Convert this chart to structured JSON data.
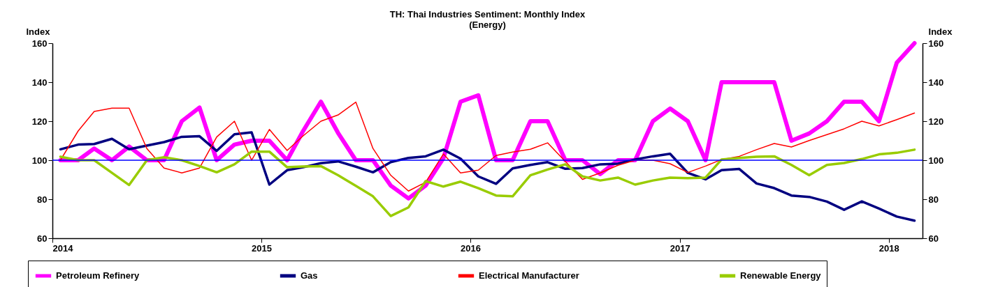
{
  "chart_data": {
    "type": "line",
    "title": "TH: Thai Industries Sentiment: Monthly Index",
    "subtitle": "(Energy)",
    "ylabel": "Index",
    "y2label": "Index",
    "x": [
      "2014-01-15",
      "2014-02-15",
      "2014-03-15",
      "2014-04-15",
      "2014-05-15",
      "2014-06-15",
      "2014-07-15",
      "2014-08-15",
      "2014-09-15",
      "2014-10-15",
      "2014-11-15",
      "2014-12-15",
      "2015-01-15",
      "2015-02-15",
      "2015-03-15",
      "2015-04-15",
      "2015-05-15",
      "2015-06-15",
      "2015-07-15",
      "2015-08-15",
      "2015-09-15",
      "2015-10-15",
      "2015-11-15",
      "2015-12-15",
      "2016-01-15",
      "2016-02-15",
      "2016-03-15",
      "2016-04-15",
      "2016-05-15",
      "2016-06-15",
      "2016-07-15",
      "2016-08-15",
      "2016-09-15",
      "2016-10-15",
      "2016-11-15",
      "2016-12-15",
      "2017-01-15",
      "2017-02-15",
      "2017-03-15",
      "2017-04-15",
      "2017-05-15",
      "2017-06-15",
      "2017-07-15",
      "2017-08-15",
      "2017-09-15",
      "2017-10-15",
      "2017-11-15",
      "2017-12-15",
      "2018-01-15",
      "2018-02-15"
    ],
    "series": [
      {
        "name": "Petroleum Refinery",
        "color": "#ff00ff",
        "values": [
          100,
          100,
          106,
          100,
          107,
          100,
          100,
          120,
          127,
          100,
          108,
          110,
          110,
          100,
          115,
          130,
          114,
          100,
          100,
          87,
          80.4,
          87,
          101,
          130,
          133.3,
          100,
          100,
          120,
          120,
          100,
          100,
          92.9,
          100,
          100,
          120,
          126.5,
          120,
          100,
          140,
          140,
          140,
          140,
          110,
          113.7,
          120,
          130,
          130,
          120,
          150,
          160
        ]
      },
      {
        "name": "Gas",
        "color": "#000080",
        "values": [
          105.6,
          108,
          108.3,
          111,
          105.6,
          107.5,
          109.3,
          112,
          112.3,
          104.8,
          113.3,
          114.3,
          87.5,
          94.9,
          96.4,
          98.5,
          99.4,
          96.7,
          93.8,
          99,
          101.2,
          102,
          105.4,
          100.8,
          91.7,
          87.9,
          95.8,
          97.6,
          99,
          95.6,
          96,
          97.9,
          98.2,
          100.4,
          102,
          103.3,
          93.5,
          90.2,
          94.9,
          95.5,
          88.1,
          85.7,
          81.9,
          81.2,
          78.8,
          74.6,
          78.9,
          75.2,
          71.1,
          69
        ]
      },
      {
        "name": "Electrical Manufacturer",
        "color": "#ff0000",
        "values": [
          100,
          115,
          125,
          126.7,
          126.7,
          106,
          96,
          93.5,
          96,
          111.9,
          120,
          100,
          115.8,
          105,
          112.5,
          120,
          123.2,
          129.8,
          106,
          92.3,
          84.2,
          88.7,
          103.2,
          93.5,
          94.9,
          102.4,
          104.2,
          105.6,
          108.9,
          99.4,
          90.2,
          93.5,
          97.4,
          100,
          100,
          98.2,
          93.7,
          97,
          100.4,
          102,
          105.4,
          108.6,
          106.8,
          110.1,
          113.1,
          116.1,
          120,
          117.6,
          120.8,
          124.2
        ]
      },
      {
        "name": "Renewable Energy",
        "color": "#99cc00",
        "values": [
          101.8,
          100,
          100,
          93.5,
          87.3,
          100,
          101.5,
          100,
          97,
          93.8,
          97.9,
          104.4,
          104.4,
          96.4,
          96.8,
          97,
          92.3,
          86.9,
          81.5,
          71.4,
          75.8,
          89.3,
          86.5,
          89,
          85.7,
          81.9,
          81.5,
          92.3,
          95.2,
          97.9,
          91.7,
          89.6,
          91.1,
          87.5,
          89.6,
          91.1,
          90.8,
          91.1,
          100.4,
          101.2,
          101.8,
          102,
          97.6,
          92.3,
          97.6,
          98.6,
          100.6,
          103,
          103.8,
          105.4
        ]
      }
    ],
    "xlim": [
      "2014-01-01",
      "2018-03-01"
    ],
    "xticks": [
      {
        "value": "2014-01-01",
        "label": "2014"
      },
      {
        "value": "2015-01-01",
        "label": "2015"
      },
      {
        "value": "2016-01-01",
        "label": "2016"
      },
      {
        "value": "2017-01-01",
        "label": "2017"
      },
      {
        "value": "2018-01-01",
        "label": "2018"
      }
    ],
    "ylim": [
      60,
      160
    ],
    "yticks": [
      60,
      80,
      100,
      120,
      140,
      160
    ],
    "y2lim": [
      60,
      160
    ],
    "y2ticks": [
      60,
      80,
      100,
      120,
      140,
      160
    ],
    "ref_lines": [
      {
        "axis": "y",
        "value": 100,
        "color": "#0000ff"
      }
    ],
    "grid": false,
    "legend": "bottom",
    "line_style": "solid",
    "marker": "none"
  }
}
